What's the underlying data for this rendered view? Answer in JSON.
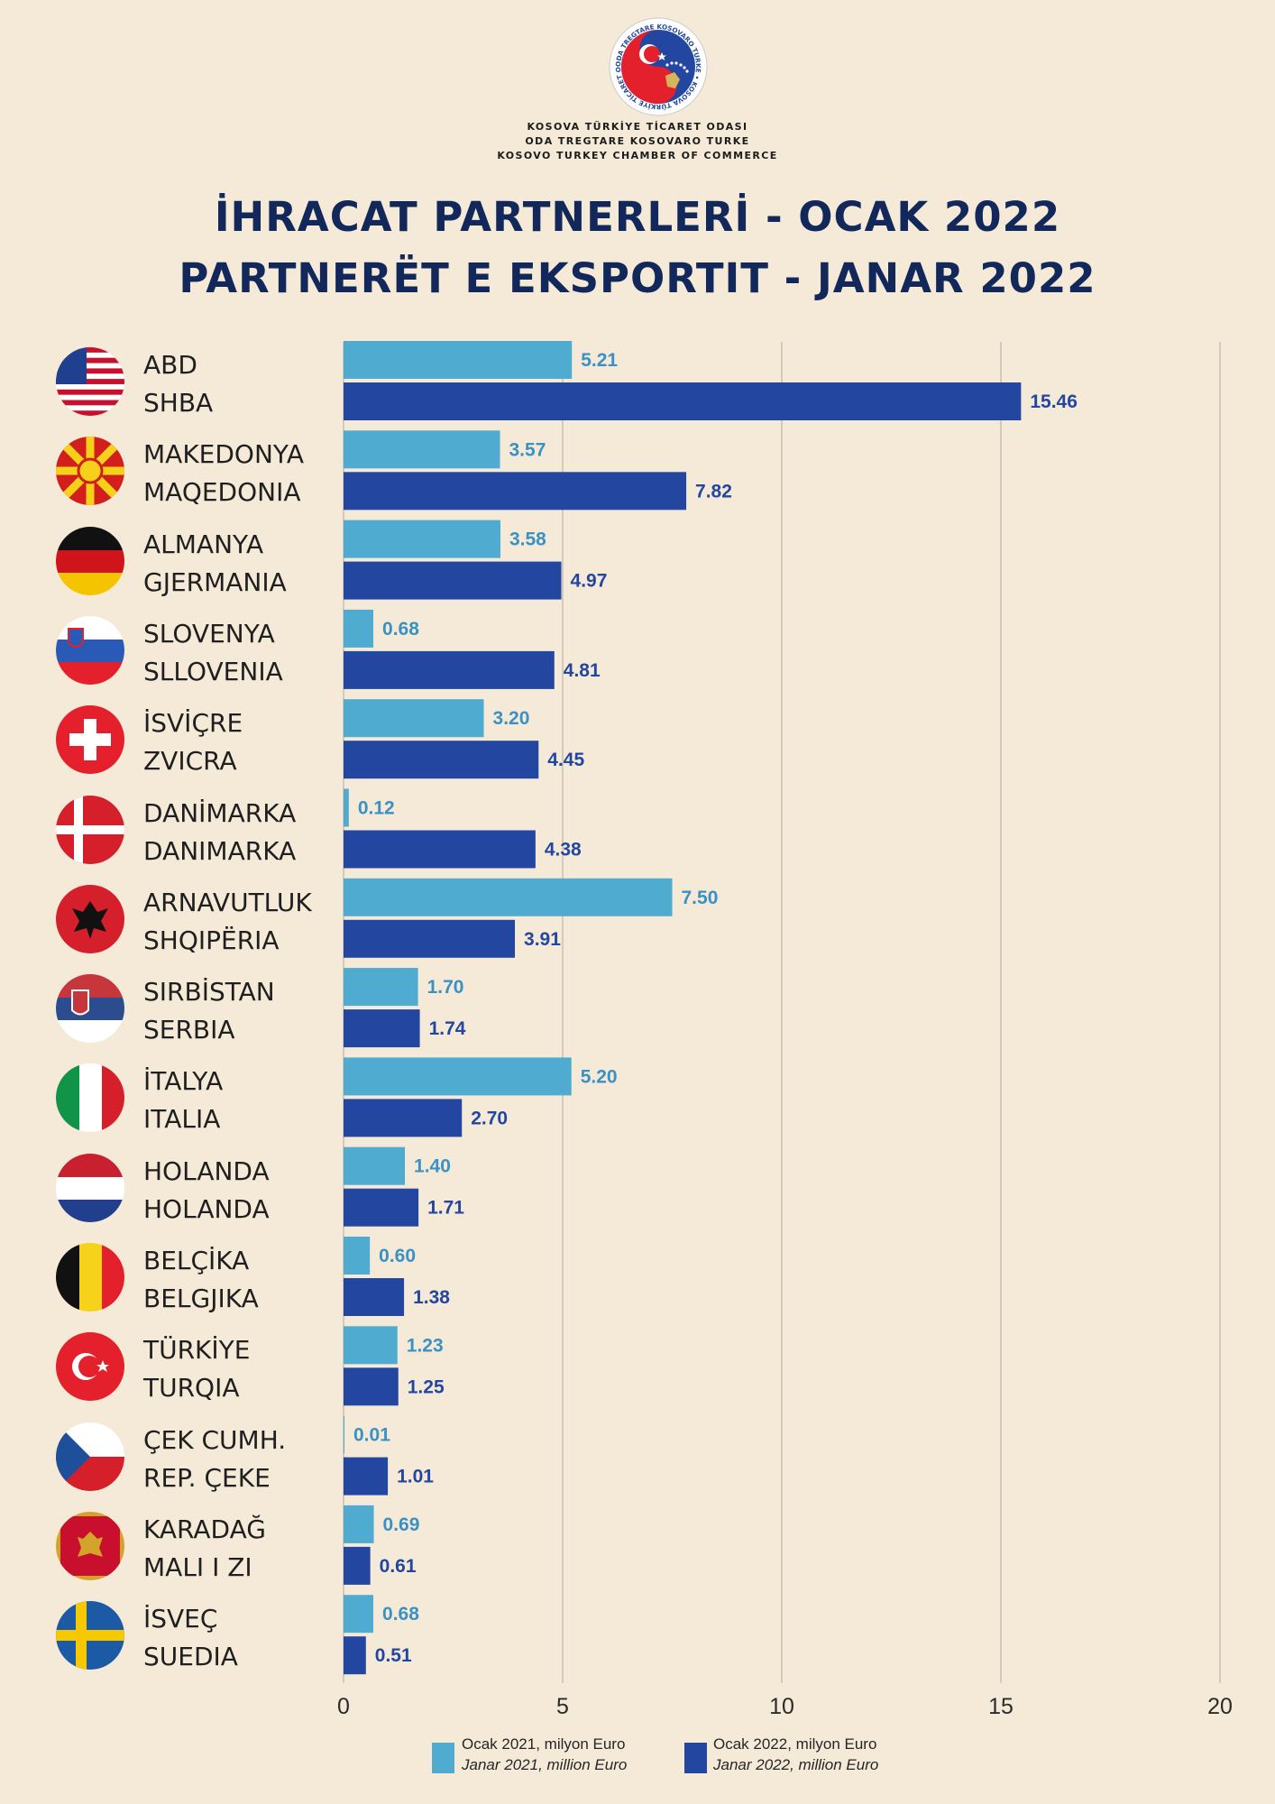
{
  "organization": {
    "name_tr": "KOSOVA TÜRKİYE TİCARET ODASI",
    "name_sq": "ODA TREGTARE KOSOVARO TURKE",
    "name_en": "KOSOVO TURKEY CHAMBER OF COMMERCE",
    "seal_text": "ODA TREGTARE KOSOVARO TURKE • KOSOVA TÜRKİYE TİCARET ODASI"
  },
  "title_tr": "İHRACAT PARTNERLERİ - OCAK 2022",
  "title_sq": "PARTNERËT E EKSPORTIT - JANAR 2022",
  "colors": {
    "series_2021": "#4fabcf",
    "series_2022": "#2347a0",
    "background": "#f5ead8",
    "title": "#13285a"
  },
  "chart_data": {
    "type": "bar",
    "orientation": "horizontal",
    "categories": [
      {
        "label_tr": "ABD",
        "label_sq": "SHBA",
        "flag_icon": "usa-flag-icon"
      },
      {
        "label_tr": "MAKEDONYA",
        "label_sq": "MAQEDONIA",
        "flag_icon": "north-macedonia-flag-icon"
      },
      {
        "label_tr": "ALMANYA",
        "label_sq": "GJERMANIA",
        "flag_icon": "germany-flag-icon"
      },
      {
        "label_tr": "SLOVENYA",
        "label_sq": "SLLOVENIA",
        "flag_icon": "slovenia-flag-icon"
      },
      {
        "label_tr": "İSVİÇRE",
        "label_sq": "ZVICRA",
        "flag_icon": "switzerland-flag-icon"
      },
      {
        "label_tr": "DANİMARKA",
        "label_sq": "DANIMARKA",
        "flag_icon": "denmark-flag-icon"
      },
      {
        "label_tr": "ARNAVUTLUK",
        "label_sq": "SHQIPËRIA",
        "flag_icon": "albania-flag-icon"
      },
      {
        "label_tr": "SIRBİSTAN",
        "label_sq": "SERBIA",
        "flag_icon": "serbia-flag-icon"
      },
      {
        "label_tr": "İTALYA",
        "label_sq": "ITALIA",
        "flag_icon": "italy-flag-icon"
      },
      {
        "label_tr": "HOLANDA",
        "label_sq": "HOLANDA",
        "flag_icon": "netherlands-flag-icon"
      },
      {
        "label_tr": "BELÇİKA",
        "label_sq": "BELGJIKA",
        "flag_icon": "belgium-flag-icon"
      },
      {
        "label_tr": "TÜRKİYE",
        "label_sq": "TURQIA",
        "flag_icon": "turkey-flag-icon"
      },
      {
        "label_tr": "ÇEK CUMH.",
        "label_sq": "REP. ÇEKE",
        "flag_icon": "czech-flag-icon"
      },
      {
        "label_tr": "KARADAĞ",
        "label_sq": "MALI I ZI",
        "flag_icon": "montenegro-flag-icon"
      },
      {
        "label_tr": "İSVEÇ",
        "label_sq": "SUEDIA",
        "flag_icon": "sweden-flag-icon"
      }
    ],
    "series": [
      {
        "name_tr": "Ocak 2021, milyon Euro",
        "name_sq": "Janar 2021, million Euro",
        "values": [
          5.21,
          3.57,
          3.58,
          0.68,
          3.2,
          0.12,
          7.5,
          1.7,
          5.2,
          1.4,
          0.6,
          1.23,
          0.01,
          0.69,
          0.68
        ],
        "labels": [
          "5.21",
          "3.57",
          "3.58",
          "0.68",
          "3.20",
          "0.12",
          "7.50",
          "1.70",
          "5.20",
          "1.40",
          "0.60",
          "1.23",
          "0.01",
          "0.69",
          "0.68"
        ]
      },
      {
        "name_tr": "Ocak 2022, milyon Euro",
        "name_sq": "Janar 2022, million Euro",
        "values": [
          15.46,
          7.82,
          4.97,
          4.81,
          4.45,
          4.38,
          3.91,
          1.74,
          2.7,
          1.71,
          1.38,
          1.25,
          1.01,
          0.61,
          0.51
        ],
        "labels": [
          "15.46",
          "7.82",
          "4.97",
          "4.81",
          "4.45",
          "4.38",
          "3.91",
          "1.74",
          "2.70",
          "1.71",
          "1.38",
          "1.25",
          "1.01",
          "0.61",
          "0.51"
        ]
      }
    ],
    "xlim": [
      0,
      20
    ],
    "xticks": [
      "0",
      "5",
      "10",
      "15",
      "20"
    ],
    "grid": "vertical",
    "legend_position": "bottom"
  }
}
